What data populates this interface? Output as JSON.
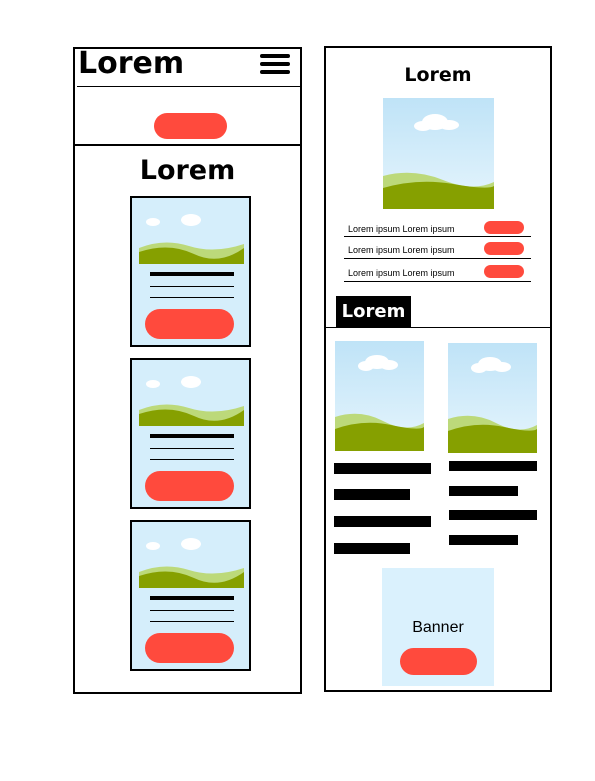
{
  "colors": {
    "accent": "#ff4a3d",
    "sky": "#d5eefb",
    "hill_dark": "#86a000",
    "hill_light": "#bcd97a",
    "banner_bg": "#daf1fd"
  },
  "mobile": {
    "header_title": "Lorem",
    "menu_icon": "hamburger-menu-icon",
    "section_title": "Lorem"
  },
  "detail": {
    "title": "Lorem",
    "list_items": [
      "Lorem ipsum Lorem ipsum",
      "Lorem ipsum Lorem ipsum",
      "Lorem ipsum Lorem ipsum"
    ],
    "section_tag": "Lorem",
    "banner_label": "Banner"
  }
}
